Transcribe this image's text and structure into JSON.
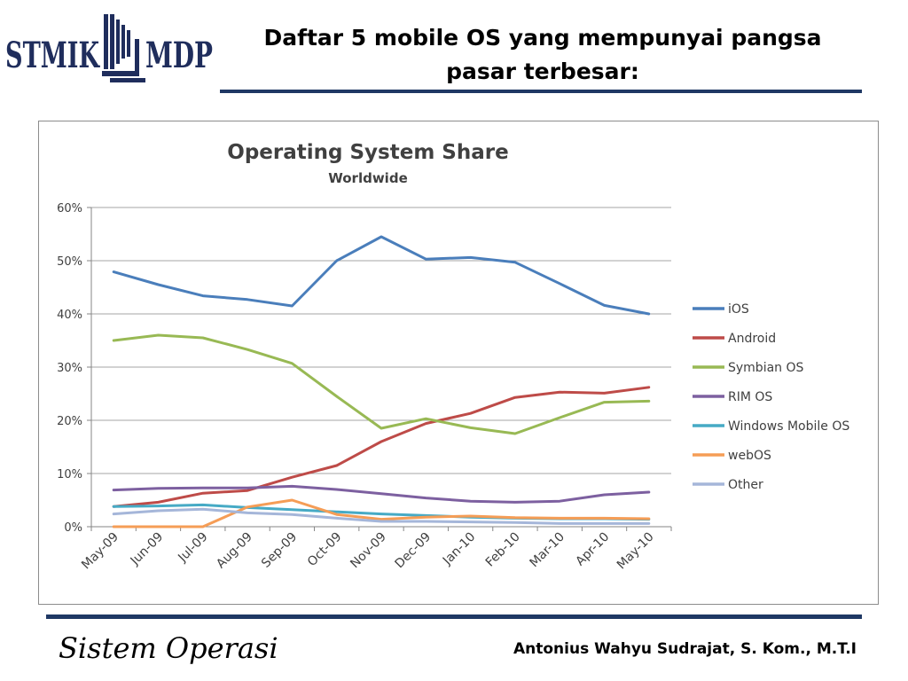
{
  "logo": {
    "left_text": "STMIK",
    "right_text": "MDP"
  },
  "slide_title": "Daftar 5 mobile OS yang mempunyai pangsa pasar terbesar:",
  "footer": {
    "left": "Sistem Operasi",
    "right": "Antonius Wahyu Sudrajat, S. Kom., M.T.I"
  },
  "chart_data": {
    "type": "line",
    "title": "Operating System Share",
    "subtitle": "Worldwide",
    "xlabel": "",
    "ylabel": "",
    "x": [
      "May-09",
      "Jun-09",
      "Jul-09",
      "Aug-09",
      "Sep-09",
      "Oct-09",
      "Nov-09",
      "Dec-09",
      "Jan-10",
      "Feb-10",
      "Mar-10",
      "Apr-10",
      "May-10"
    ],
    "ylim": [
      0,
      60
    ],
    "yticks": [
      0,
      10,
      20,
      30,
      40,
      50,
      60
    ],
    "ytick_labels": [
      "0%",
      "10%",
      "20%",
      "30%",
      "40%",
      "50%",
      "60%"
    ],
    "grid": true,
    "legend_position": "right",
    "series": [
      {
        "name": "iOS",
        "color": "#4a7ebb",
        "values": [
          47.9,
          45.5,
          43.4,
          42.7,
          41.5,
          50.0,
          54.5,
          50.3,
          50.6,
          49.7,
          45.7,
          41.6,
          40.0
        ]
      },
      {
        "name": "Android",
        "color": "#be4b48",
        "values": [
          3.8,
          4.6,
          6.3,
          6.8,
          9.3,
          11.5,
          16.0,
          19.4,
          21.3,
          24.3,
          25.3,
          25.1,
          26.2
        ]
      },
      {
        "name": "Symbian OS",
        "color": "#98b954",
        "values": [
          35.0,
          36.0,
          35.5,
          33.3,
          30.7,
          24.5,
          18.5,
          20.3,
          18.6,
          17.5,
          20.5,
          23.4,
          23.6
        ]
      },
      {
        "name": "RIM OS",
        "color": "#7d60a0",
        "values": [
          6.9,
          7.2,
          7.3,
          7.3,
          7.6,
          7.0,
          6.2,
          5.4,
          4.8,
          4.6,
          4.8,
          6.0,
          6.5
        ]
      },
      {
        "name": "Windows Mobile OS",
        "color": "#46aac5",
        "values": [
          3.8,
          3.9,
          4.1,
          3.6,
          3.2,
          2.8,
          2.4,
          2.1,
          1.8,
          1.6,
          1.5,
          1.5,
          1.4
        ]
      },
      {
        "name": "webOS",
        "color": "#f59d56",
        "values": [
          0,
          0,
          0,
          3.7,
          5.0,
          2.3,
          1.4,
          1.8,
          2.0,
          1.7,
          1.6,
          1.6,
          1.5
        ]
      },
      {
        "name": "Other",
        "color": "#a5b6d9",
        "values": [
          2.4,
          3.0,
          3.3,
          2.6,
          2.3,
          1.6,
          1.0,
          1.0,
          0.9,
          0.8,
          0.6,
          0.6,
          0.6
        ]
      }
    ]
  }
}
